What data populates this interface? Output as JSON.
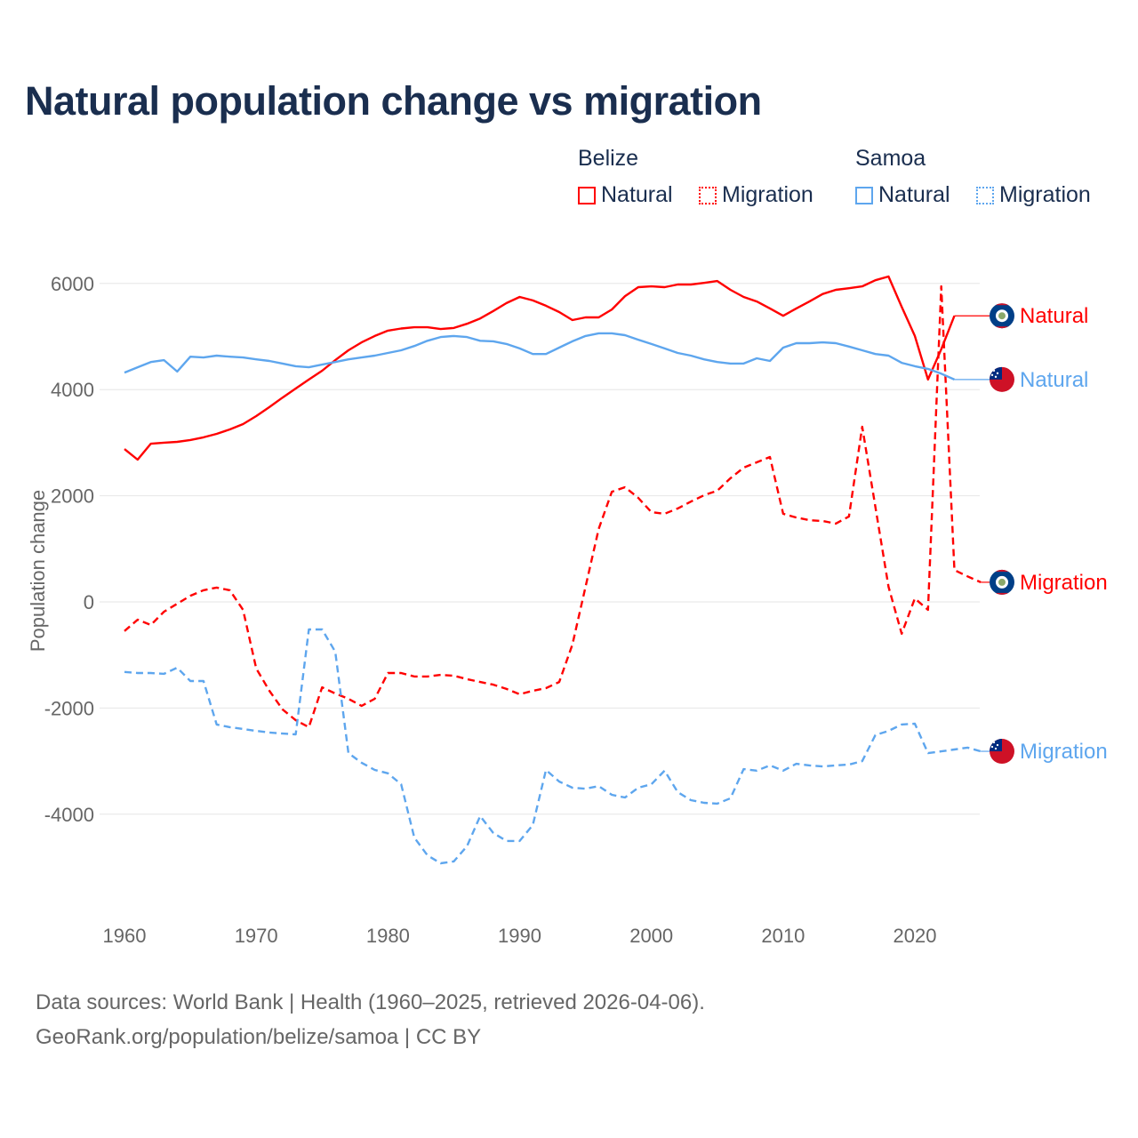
{
  "title": "Natural population change vs migration",
  "legend": {
    "groups": [
      {
        "name": "Belize",
        "color": "#ff0000",
        "items": [
          "Natural",
          "Migration"
        ]
      },
      {
        "name": "Samoa",
        "color": "#5ea6ee",
        "items": [
          "Natural",
          "Migration"
        ]
      }
    ]
  },
  "footer": {
    "line1": "Data sources: World Bank | Health (1960–2025, retrieved 2026-04-06).",
    "line2": "GeoRank.org/population/belize/samoa | CC BY"
  },
  "chart_data": {
    "type": "line",
    "title": "Natural population change vs migration",
    "xlabel": "",
    "ylabel": "Population change",
    "xlim": [
      1960,
      2025
    ],
    "ylim": [
      -5500,
      6500
    ],
    "x_ticks": [
      1960,
      1970,
      1980,
      1990,
      2000,
      2010,
      2020
    ],
    "y_ticks": [
      -4000,
      -2000,
      0,
      2000,
      4000,
      6000
    ],
    "grid": true,
    "legend_position": "top-right",
    "series": [
      {
        "name": "Belize Natural",
        "label": "Natural",
        "country": "Belize",
        "style": "solid",
        "color": "#ff0000",
        "start": 1960,
        "values": [
          2880,
          2680,
          2980,
          3000,
          3015,
          3050,
          3100,
          3165,
          3250,
          3350,
          3500,
          3670,
          3850,
          4020,
          4190,
          4355,
          4555,
          4740,
          4890,
          5010,
          5110,
          5150,
          5175,
          5175,
          5140,
          5160,
          5240,
          5340,
          5480,
          5630,
          5745,
          5680,
          5580,
          5460,
          5310,
          5360,
          5360,
          5510,
          5760,
          5930,
          5945,
          5930,
          5980,
          5980,
          6010,
          6045,
          5880,
          5745,
          5660,
          5530,
          5390,
          5530,
          5660,
          5800,
          5880,
          5910,
          5945,
          6060,
          6130,
          5560,
          5010,
          4190,
          4760,
          5390
        ]
      },
      {
        "name": "Belize Migration",
        "label": "Migration",
        "country": "Belize",
        "style": "dashed",
        "color": "#ff0000",
        "start": 1960,
        "values": [
          -550,
          -335,
          -435,
          -185,
          -35,
          115,
          220,
          270,
          220,
          -150,
          -1255,
          -1675,
          -2025,
          -2230,
          -2360,
          -1610,
          -1725,
          -1825,
          -1960,
          -1825,
          -1340,
          -1340,
          -1405,
          -1405,
          -1375,
          -1390,
          -1455,
          -1510,
          -1560,
          -1640,
          -1740,
          -1675,
          -1625,
          -1510,
          -805,
          285,
          1375,
          2075,
          2160,
          1960,
          1690,
          1660,
          1760,
          1890,
          2010,
          2095,
          2330,
          2530,
          2630,
          2730,
          1660,
          1590,
          1540,
          1525,
          1475,
          1610,
          3300,
          1790,
          285,
          -600,
          65,
          -150,
          5945,
          600,
          480,
          370
        ]
      },
      {
        "name": "Samoa Natural",
        "label": "Natural",
        "country": "Samoa",
        "style": "solid",
        "color": "#5ea6ee",
        "start": 1960,
        "values": [
          4320,
          4420,
          4520,
          4555,
          4340,
          4620,
          4605,
          4640,
          4620,
          4605,
          4570,
          4540,
          4490,
          4440,
          4420,
          4470,
          4520,
          4570,
          4605,
          4640,
          4690,
          4740,
          4820,
          4920,
          4990,
          5010,
          4990,
          4920,
          4910,
          4860,
          4775,
          4670,
          4670,
          4790,
          4910,
          5010,
          5060,
          5060,
          5025,
          4940,
          4860,
          4775,
          4690,
          4640,
          4570,
          4520,
          4490,
          4490,
          4590,
          4540,
          4790,
          4875,
          4875,
          4890,
          4875,
          4810,
          4740,
          4670,
          4640,
          4505,
          4440,
          4390,
          4300,
          4190
        ]
      },
      {
        "name": "Samoa Migration",
        "label": "Migration",
        "country": "Samoa",
        "style": "dashed",
        "color": "#5ea6ee",
        "start": 1960,
        "values": [
          -1320,
          -1340,
          -1340,
          -1355,
          -1240,
          -1490,
          -1490,
          -2310,
          -2360,
          -2395,
          -2430,
          -2460,
          -2480,
          -2495,
          -520,
          -520,
          -940,
          -2850,
          -3030,
          -3165,
          -3230,
          -3435,
          -4440,
          -4775,
          -4925,
          -4890,
          -4605,
          -4035,
          -4355,
          -4505,
          -4505,
          -4205,
          -3165,
          -3385,
          -3500,
          -3520,
          -3470,
          -3635,
          -3685,
          -3500,
          -3435,
          -3180,
          -3585,
          -3735,
          -3785,
          -3800,
          -3700,
          -3150,
          -3180,
          -3080,
          -3180,
          -3050,
          -3080,
          -3100,
          -3080,
          -3065,
          -3000,
          -2510,
          -2430,
          -2310,
          -2295,
          -2850,
          -2815,
          -2780,
          -2745,
          -2815
        ]
      }
    ]
  }
}
